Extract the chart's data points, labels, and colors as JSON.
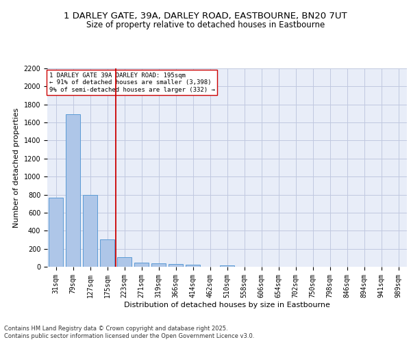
{
  "title_line1": "1 DARLEY GATE, 39A, DARLEY ROAD, EASTBOURNE, BN20 7UT",
  "title_line2": "Size of property relative to detached houses in Eastbourne",
  "xlabel": "Distribution of detached houses by size in Eastbourne",
  "ylabel": "Number of detached properties",
  "categories": [
    "31sqm",
    "79sqm",
    "127sqm",
    "175sqm",
    "223sqm",
    "271sqm",
    "319sqm",
    "366sqm",
    "414sqm",
    "462sqm",
    "510sqm",
    "558sqm",
    "606sqm",
    "654sqm",
    "702sqm",
    "750sqm",
    "798sqm",
    "846sqm",
    "894sqm",
    "941sqm",
    "989sqm"
  ],
  "values": [
    770,
    1690,
    800,
    300,
    110,
    42,
    38,
    28,
    20,
    0,
    18,
    0,
    0,
    0,
    0,
    0,
    0,
    0,
    0,
    0,
    0
  ],
  "bar_color": "#aec6e8",
  "bar_edge_color": "#5b9bd5",
  "vline_x": 3.5,
  "vline_color": "#cc0000",
  "annotation_text": "1 DARLEY GATE 39A DARLEY ROAD: 195sqm\n← 91% of detached houses are smaller (3,398)\n9% of semi-detached houses are larger (332) →",
  "annotation_box_color": "white",
  "annotation_box_edge": "#cc0000",
  "ylim": [
    0,
    2200
  ],
  "yticks": [
    0,
    200,
    400,
    600,
    800,
    1000,
    1200,
    1400,
    1600,
    1800,
    2000,
    2200
  ],
  "grid_color": "#c0c8e0",
  "bg_color": "#e8edf8",
  "footer_line1": "Contains HM Land Registry data © Crown copyright and database right 2025.",
  "footer_line2": "Contains public sector information licensed under the Open Government Licence v3.0.",
  "title_fontsize": 9.5,
  "subtitle_fontsize": 8.5,
  "axis_label_fontsize": 8,
  "tick_fontsize": 7,
  "annotation_fontsize": 6.5,
  "footer_fontsize": 6
}
